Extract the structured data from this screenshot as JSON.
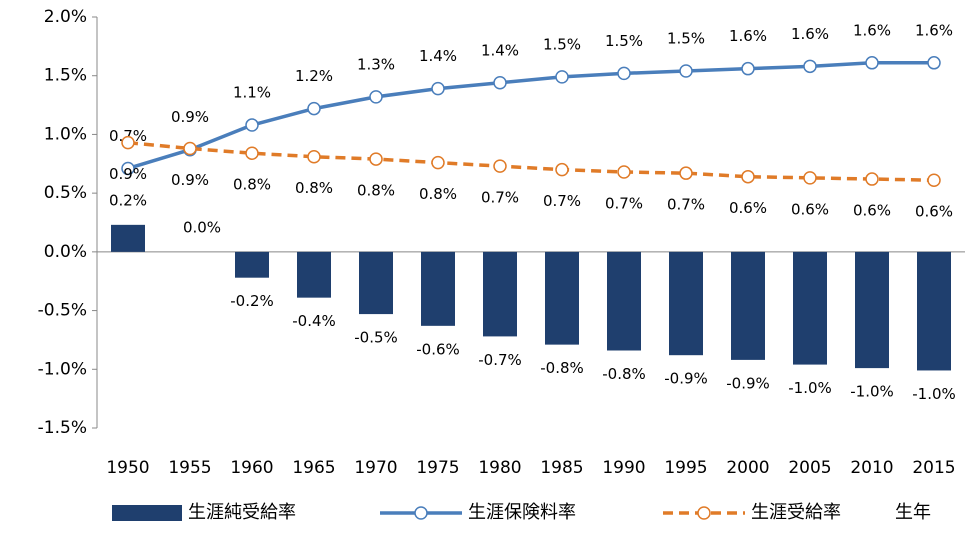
{
  "chart_data": {
    "type": "bar",
    "categories": [
      "1950",
      "1955",
      "1960",
      "1965",
      "1970",
      "1975",
      "1980",
      "1985",
      "1990",
      "1995",
      "2000",
      "2005",
      "2010",
      "2015"
    ],
    "xlabel": "生年",
    "series": [
      {
        "name": "生涯純受給率",
        "type": "bar",
        "color": "#1f3f6e",
        "values": [
          0.23,
          0,
          -0.22,
          -0.39,
          -0.53,
          -0.63,
          -0.72,
          -0.79,
          -0.84,
          -0.88,
          -0.92,
          -0.96,
          -0.99,
          -1.01
        ],
        "value_labels": [
          "0.2%",
          "0.0%",
          "-0.2%",
          "-0.4%",
          "-0.5%",
          "-0.6%",
          "-0.7%",
          "-0.8%",
          "-0.8%",
          "-0.9%",
          "-0.9%",
          "-1.0%",
          "-1.0%",
          "-1.0%"
        ]
      },
      {
        "name": "生涯保険料率",
        "type": "line",
        "color": "#4a7ebb",
        "dash": false,
        "values": [
          0.71,
          0.87,
          1.08,
          1.22,
          1.32,
          1.39,
          1.44,
          1.49,
          1.52,
          1.54,
          1.56,
          1.58,
          1.61,
          1.61
        ],
        "value_labels": [
          "0.7%",
          "0.9%",
          "1.1%",
          "1.2%",
          "1.3%",
          "1.4%",
          "1.4%",
          "1.5%",
          "1.5%",
          "1.5%",
          "1.6%",
          "1.6%",
          "1.6%",
          "1.6%"
        ]
      },
      {
        "name": "生涯受給率",
        "type": "line",
        "color": "#e07b28",
        "dash": true,
        "values": [
          0.93,
          0.88,
          0.84,
          0.81,
          0.79,
          0.76,
          0.73,
          0.7,
          0.68,
          0.67,
          0.64,
          0.63,
          0.62,
          0.61
        ],
        "value_labels": [
          "0.9%",
          "0.9%",
          "0.8%",
          "0.8%",
          "0.8%",
          "0.8%",
          "0.7%",
          "0.7%",
          "0.7%",
          "0.7%",
          "0.6%",
          "0.6%",
          "0.6%",
          "0.6%"
        ]
      }
    ],
    "ylim": [
      -1.5,
      2.0
    ],
    "yticks": [
      {
        "value": -1.5,
        "label": "-1.5%"
      },
      {
        "value": -1.0,
        "label": "-1.0%"
      },
      {
        "value": -0.5,
        "label": "-0.5%"
      },
      {
        "value": 0,
        "label": "0.0%"
      },
      {
        "value": 0.5,
        "label": "0.5%"
      },
      {
        "value": 1.0,
        "label": "1.0%"
      },
      {
        "value": 1.5,
        "label": "1.5%"
      },
      {
        "value": 2.0,
        "label": "2.0%"
      }
    ],
    "grid": false
  }
}
